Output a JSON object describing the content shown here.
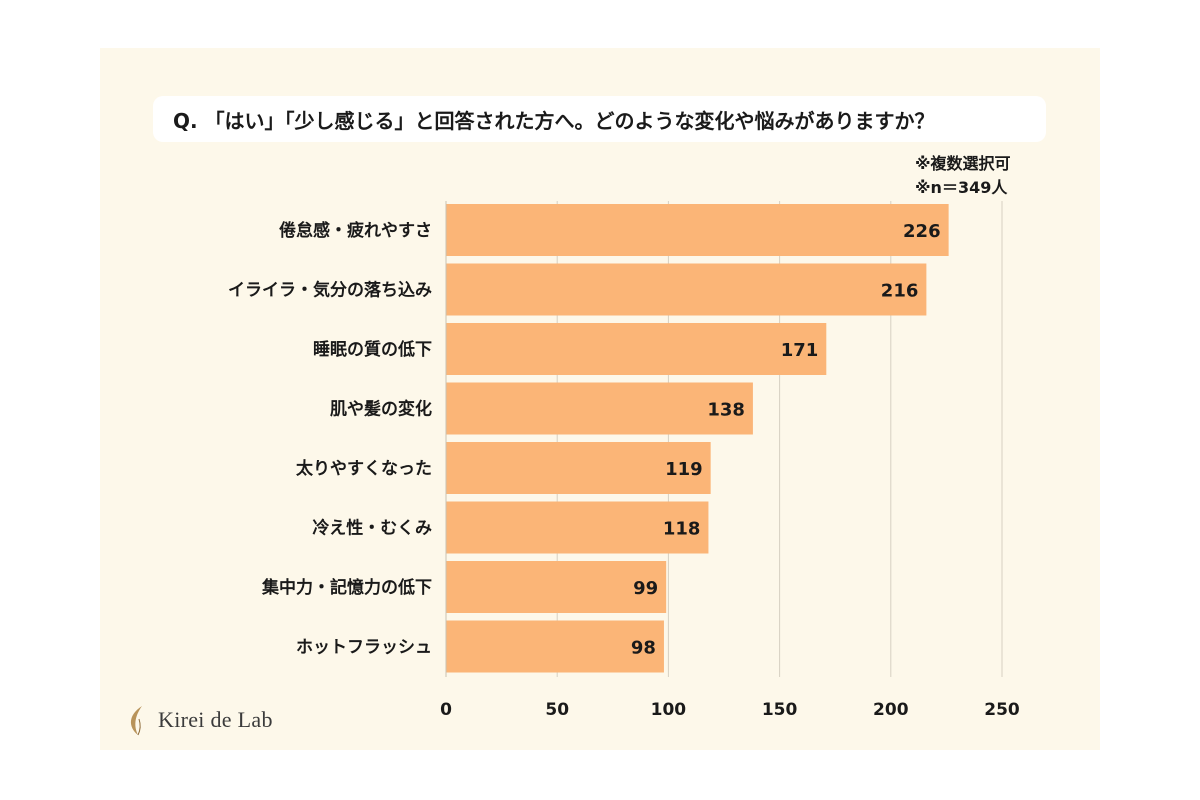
{
  "question": "Q. 「はい」「少し感じる」と回答された方へ。どのような変化や悩みがありますか？",
  "notes": [
    "※複数選択可",
    "※n＝349人"
  ],
  "brand": {
    "name": "Kirei de Lab"
  },
  "colors": {
    "bar": "#fbb577",
    "grid": "#d6d0c2",
    "panel": "#fdf8ea"
  },
  "chart_data": {
    "type": "bar",
    "orientation": "horizontal",
    "title": "Q. 「はい」「少し感じる」と回答された方へ。どのような変化や悩みがありますか？",
    "categories": [
      "倦怠感・疲れやすさ",
      "イライラ・気分の落ち込み",
      "睡眠の質の低下",
      "肌や髪の変化",
      "太りやすくなった",
      "冷え性・むくみ",
      "集中力・記憶力の低下",
      "ホットフラッシュ"
    ],
    "values": [
      226,
      216,
      171,
      138,
      119,
      118,
      99,
      98
    ],
    "xlim": [
      0,
      250
    ],
    "xticks": [
      0,
      50,
      100,
      150,
      200,
      250
    ],
    "grid": true,
    "xlabel": "",
    "ylabel": ""
  }
}
